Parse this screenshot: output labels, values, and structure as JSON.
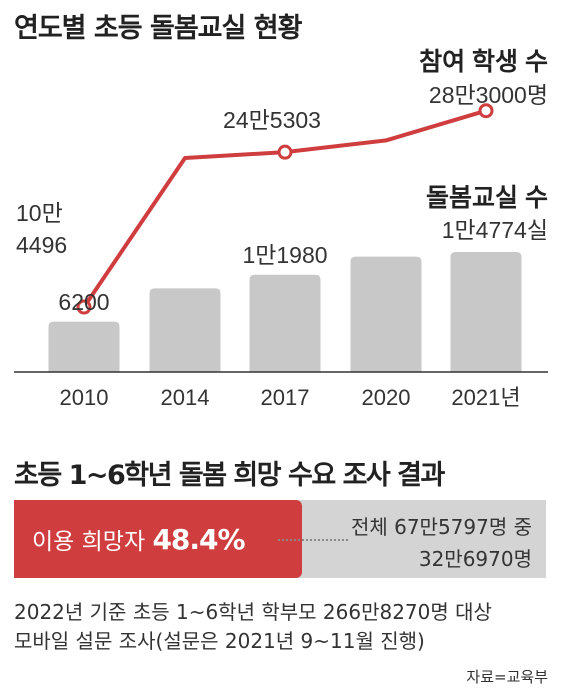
{
  "title": "연도별 초등 돌봄교실 현황",
  "chart_data": {
    "type": "bar",
    "categories": [
      "2010",
      "2014",
      "2017",
      "2020",
      "2021년"
    ],
    "series": [
      {
        "name": "참여 학생 수",
        "chart_type": "line",
        "values": [
          104496,
          240000,
          245303,
          256000,
          283000
        ],
        "labels": [
          "10만\n4496",
          "",
          "24만5303",
          "",
          "28만3000명"
        ],
        "color": "#cf3d3e"
      },
      {
        "name": "돌봄교실 수",
        "chart_type": "bar",
        "values": [
          6200,
          10300,
          11980,
          14200,
          14774
        ],
        "labels": [
          "6200",
          "",
          "1만1980",
          "",
          "1만4774실"
        ],
        "color": "#c8c8c8"
      }
    ],
    "grid": false
  },
  "survey": {
    "title": "초등 1~6학년 돌봄 희망 수요 조사 결과",
    "fill_fraction": 0.484,
    "fill_label": "이용 희망자",
    "fill_value": "48.4%",
    "note_line1": "전체 67만5797명 중",
    "note_line2": "32만6970명",
    "colors": {
      "fill": "#cf3d3e",
      "track": "#d4d4d4"
    }
  },
  "description": {
    "line1": "2022년 기준 초등 1~6학년 학부모 266만8270명 대상",
    "line2": "모바일 설문 조사(설문은 2021년 9~11월 진행)"
  },
  "source": "자료=교육부"
}
